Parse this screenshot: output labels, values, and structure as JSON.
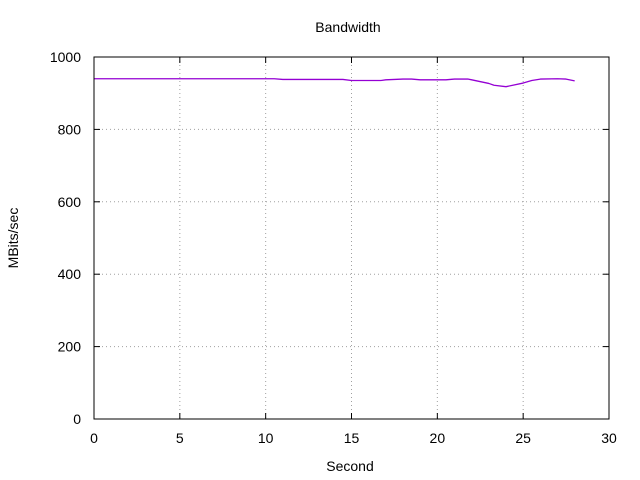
{
  "chart_data": {
    "type": "line",
    "title": "Bandwidth",
    "xlabel": "Second",
    "ylabel": "MBits/sec",
    "xlim": [
      0,
      30
    ],
    "ylim": [
      0,
      1000
    ],
    "xticks": [
      0,
      5,
      10,
      15,
      20,
      25,
      30
    ],
    "yticks": [
      0,
      200,
      400,
      600,
      800,
      1000
    ],
    "x_tick_labels": [
      "0",
      "5",
      "10",
      "15",
      "20",
      "25",
      "30"
    ],
    "y_tick_labels": [
      "0",
      "200",
      "400",
      "600",
      "800",
      "1000"
    ],
    "grid": true,
    "series": [
      {
        "color": "#9400d3",
        "x": [
          0,
          1,
          2,
          3,
          4,
          5,
          6,
          7,
          8,
          9,
          10,
          10.5,
          11,
          12,
          13,
          14,
          14.5,
          15,
          16,
          16.7,
          17,
          18,
          18.5,
          19,
          20,
          20.5,
          21,
          21.8,
          22,
          23,
          23.3,
          24,
          25,
          25.5,
          26,
          27,
          27.5,
          28
        ],
        "y": [
          940,
          940,
          940,
          940,
          940,
          940,
          940,
          940,
          940,
          940,
          940,
          940,
          938,
          938,
          938,
          938,
          938,
          935,
          935,
          935,
          937,
          939,
          939,
          937,
          937,
          937,
          939,
          939,
          937,
          927,
          922,
          918,
          928,
          935,
          939,
          940,
          939,
          934
        ]
      }
    ]
  }
}
